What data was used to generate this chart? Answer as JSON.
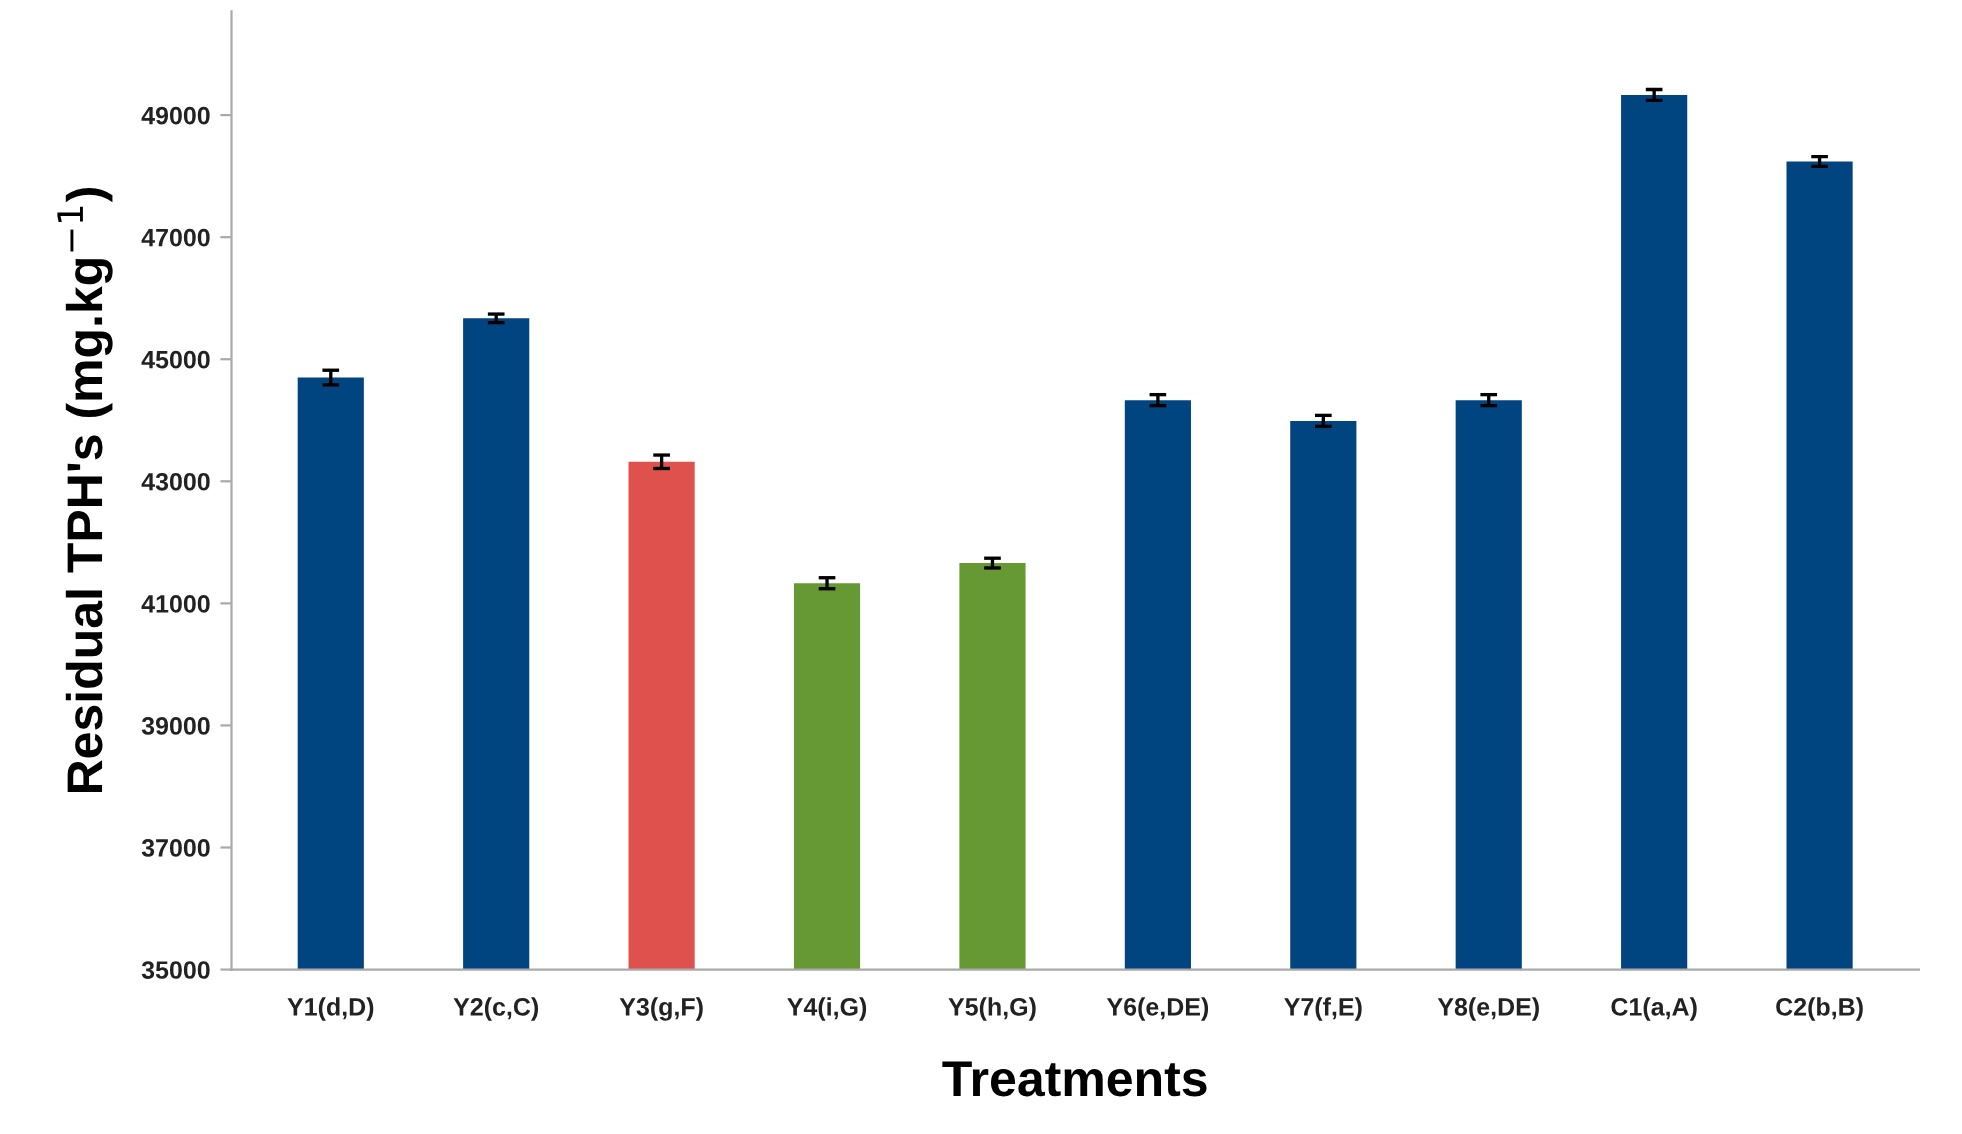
{
  "chart_data": {
    "type": "bar",
    "xlabel": "Treatments",
    "ylabel": "Residual TPH's (mg.kg$^{−1}$)",
    "categories": [
      "Y1(d,D)",
      "Y2(c,C)",
      "Y3(g,F)",
      "Y4(i,G)",
      "Y5(h,G)",
      "Y6(e,DE)",
      "Y7(f,E)",
      "Y8(e,DE)",
      "C1(a,A)",
      "C2(b,B)"
    ],
    "values": [
      44700,
      45670,
      43320,
      41330,
      41660,
      44330,
      43990,
      44330,
      49330,
      48240
    ],
    "errors": [
      120,
      70,
      110,
      90,
      80,
      90,
      90,
      90,
      90,
      80
    ],
    "colors": [
      "#004580",
      "#004580",
      "#de514c",
      "#669933",
      "#669933",
      "#004580",
      "#004580",
      "#004580",
      "#004580",
      "#004580"
    ],
    "ylim": [
      35000,
      50700
    ],
    "yticks": [
      35000,
      37000,
      39000,
      41000,
      43000,
      45000,
      47000,
      49000
    ],
    "grid": false,
    "legend": false
  }
}
